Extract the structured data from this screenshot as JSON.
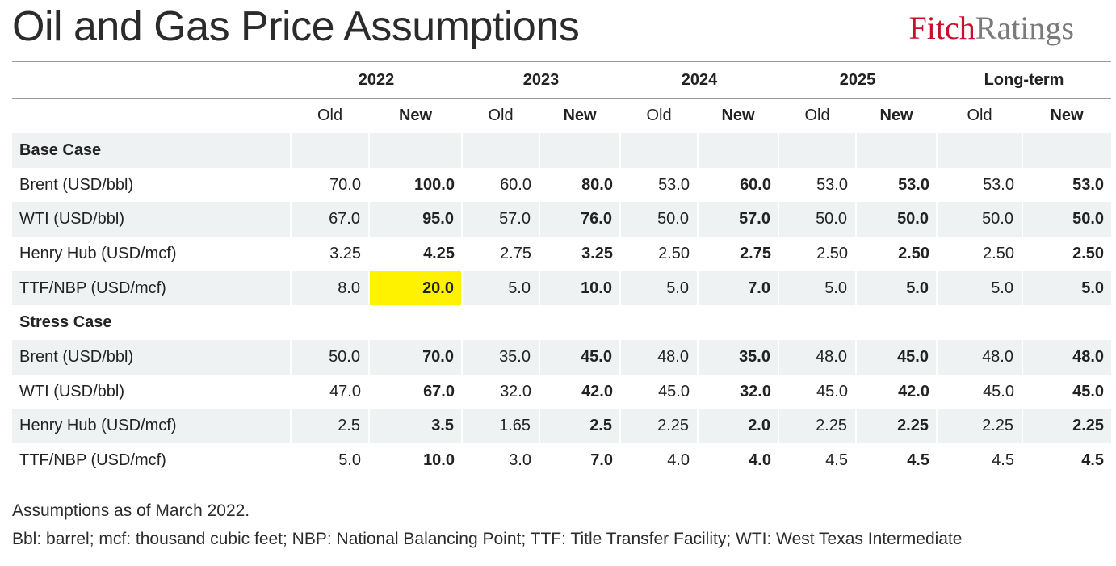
{
  "header": {
    "title": "Oil and Gas Price Assumptions",
    "logo_fitch": "Fitch",
    "logo_ratings": "Ratings"
  },
  "table": {
    "years": [
      "2022",
      "2023",
      "2024",
      "2025",
      "Long-term"
    ],
    "old_label": "Old",
    "new_label": "New",
    "sections": [
      {
        "title": "Base Case",
        "rows": [
          {
            "label": "Brent (USD/bbl)",
            "values": [
              "70.0",
              "100.0",
              "60.0",
              "80.0",
              "53.0",
              "60.0",
              "53.0",
              "53.0",
              "53.0",
              "53.0"
            ]
          },
          {
            "label": "WTI (USD/bbl)",
            "values": [
              "67.0",
              "95.0",
              "57.0",
              "76.0",
              "50.0",
              "57.0",
              "50.0",
              "50.0",
              "50.0",
              "50.0"
            ]
          },
          {
            "label": "Henry Hub (USD/mcf)",
            "values": [
              "3.25",
              "4.25",
              "2.75",
              "3.25",
              "2.50",
              "2.75",
              "2.50",
              "2.50",
              "2.50",
              "2.50"
            ]
          },
          {
            "label": "TTF/NBP (USD/mcf)",
            "values": [
              "8.0",
              "20.0",
              "5.0",
              "10.0",
              "5.0",
              "7.0",
              "5.0",
              "5.0",
              "5.0",
              "5.0"
            ],
            "highlight_index": 1
          }
        ]
      },
      {
        "title": "Stress Case",
        "rows": [
          {
            "label": "Brent (USD/bbl)",
            "values": [
              "50.0",
              "70.0",
              "35.0",
              "45.0",
              "48.0",
              "35.0",
              "48.0",
              "45.0",
              "48.0",
              "48.0"
            ]
          },
          {
            "label": "WTI (USD/bbl)",
            "values": [
              "47.0",
              "67.0",
              "32.0",
              "42.0",
              "45.0",
              "32.0",
              "45.0",
              "42.0",
              "45.0",
              "45.0"
            ]
          },
          {
            "label": "Henry Hub (USD/mcf)",
            "values": [
              "2.5",
              "3.5",
              "1.65",
              "2.5",
              "2.25",
              "2.0",
              "2.25",
              "2.25",
              "2.25",
              "2.25"
            ]
          },
          {
            "label": "TTF/NBP (USD/mcf)",
            "values": [
              "5.0",
              "10.0",
              "3.0",
              "7.0",
              "4.0",
              "4.0",
              "4.5",
              "4.5",
              "4.5",
              "4.5"
            ]
          }
        ]
      }
    ]
  },
  "notes": {
    "line1": "Assumptions as of March 2022.",
    "line2": "Bbl: barrel; mcf: thousand cubic feet; NBP: National Balancing Point; TTF: Title Transfer Facility; WTI: West Texas Intermediate"
  },
  "colors": {
    "highlight": "#fff200",
    "row_shade": "#eef2f2",
    "brand_red": "#c8102e",
    "brand_grey": "#7a7a7a"
  }
}
